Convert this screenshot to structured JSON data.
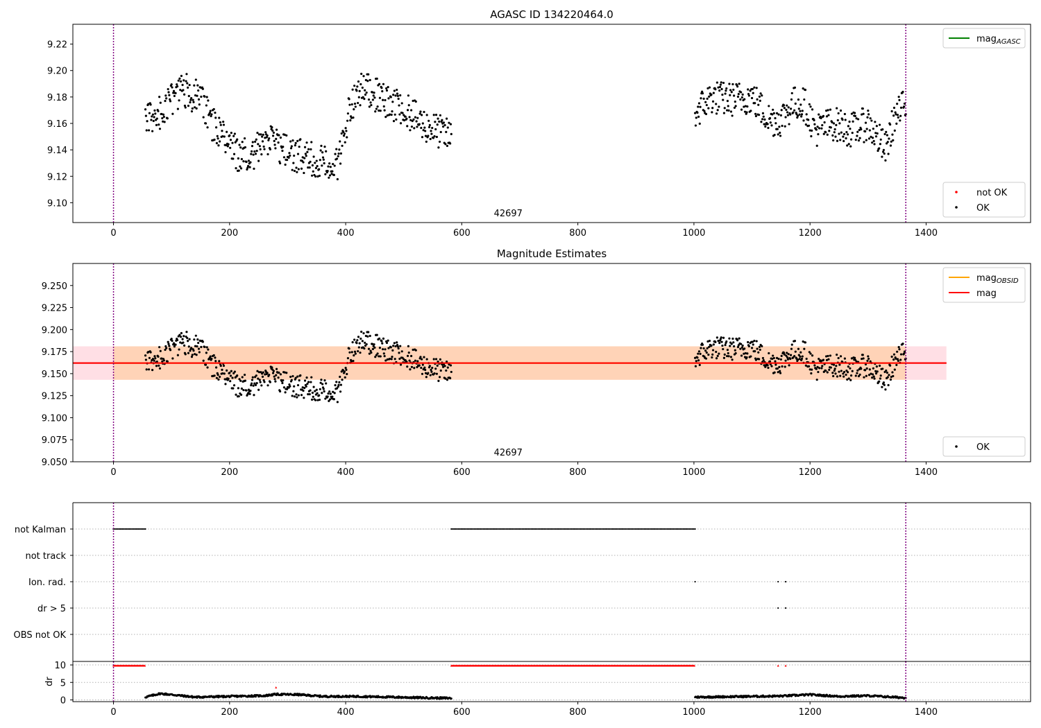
{
  "chart_data": [
    {
      "type": "scatter",
      "title": "AGASC ID 134220464.0",
      "xlim": [
        -70,
        1580
      ],
      "ylim": [
        9.085,
        9.235
      ],
      "xticks": [
        0,
        200,
        400,
        600,
        800,
        1000,
        1200,
        1400
      ],
      "yticks": [
        9.1,
        9.12,
        9.14,
        9.16,
        9.18,
        9.2,
        9.22
      ],
      "ytick_decimals": 2,
      "grid": false,
      "obsid_label": "42697",
      "vlines": [
        0,
        1365
      ],
      "legends": [
        {
          "position": "top-right",
          "entries": [
            {
              "label": "mag",
              "sub": "AGASC",
              "kind": "line",
              "color": "#008000"
            }
          ]
        },
        {
          "position": "bottom-right",
          "entries": [
            {
              "label": "not OK",
              "kind": "dot",
              "color": "#ff0000"
            },
            {
              "label": "OK",
              "kind": "dot",
              "color": "#000000"
            }
          ]
        }
      ],
      "series": [
        {
          "name": "OK",
          "color": "#000000",
          "x_segments": [
            [
              55,
              582,
              1.0
            ],
            [
              1002,
              1365,
              1.0
            ]
          ],
          "profile": [
            [
              55,
              9.162
            ],
            [
              80,
              9.168
            ],
            [
              100,
              9.178
            ],
            [
              120,
              9.186
            ],
            [
              150,
              9.178
            ],
            [
              170,
              9.16
            ],
            [
              195,
              9.148
            ],
            [
              215,
              9.136
            ],
            [
              240,
              9.138
            ],
            [
              270,
              9.146
            ],
            [
              300,
              9.138
            ],
            [
              330,
              9.134
            ],
            [
              370,
              9.13
            ],
            [
              385,
              9.128
            ],
            [
              400,
              9.16
            ],
            [
              420,
              9.184
            ],
            [
              440,
              9.186
            ],
            [
              470,
              9.175
            ],
            [
              500,
              9.172
            ],
            [
              530,
              9.16
            ],
            [
              560,
              9.154
            ],
            [
              580,
              9.15
            ],
            [
              1002,
              9.168
            ],
            [
              1030,
              9.18
            ],
            [
              1060,
              9.178
            ],
            [
              1100,
              9.18
            ],
            [
              1130,
              9.163
            ],
            [
              1150,
              9.163
            ],
            [
              1170,
              9.175
            ],
            [
              1190,
              9.175
            ],
            [
              1210,
              9.155
            ],
            [
              1240,
              9.16
            ],
            [
              1270,
              9.155
            ],
            [
              1300,
              9.16
            ],
            [
              1330,
              9.14
            ],
            [
              1345,
              9.163
            ],
            [
              1365,
              9.175
            ]
          ],
          "scatter": 0.013
        }
      ]
    },
    {
      "type": "scatter",
      "title": "Magnitude Estimates",
      "xlim": [
        -70,
        1580
      ],
      "ylim": [
        9.05,
        9.275
      ],
      "xticks": [
        0,
        200,
        400,
        600,
        800,
        1000,
        1200,
        1400
      ],
      "yticks": [
        9.05,
        9.075,
        9.1,
        9.125,
        9.15,
        9.175,
        9.2,
        9.225,
        9.25
      ],
      "ytick_decimals": 3,
      "grid": false,
      "obsid_label": "42697",
      "vlines": [
        0,
        1365
      ],
      "bands": [
        {
          "x": [
            -70,
            1435
          ],
          "y": [
            9.143,
            9.181
          ],
          "color": "#ffc0cb",
          "opacity": 0.5
        },
        {
          "x": [
            0,
            1365
          ],
          "y": [
            9.143,
            9.181
          ],
          "color": "#ffa500",
          "opacity": 0.2
        }
      ],
      "hlines": [
        {
          "y": 9.162,
          "x": [
            -70,
            1435
          ],
          "color": "#ff0000",
          "label": "mag"
        },
        {
          "y": 9.162,
          "x": [
            0,
            1365
          ],
          "color": "#ffa500",
          "label": "mag",
          "sub": "OBSID"
        }
      ],
      "legends": [
        {
          "position": "top-right",
          "entries": [
            {
              "label": "mag",
              "sub": "OBSID",
              "kind": "line",
              "color": "#ffa500"
            },
            {
              "label": "mag",
              "kind": "line",
              "color": "#ff0000"
            }
          ]
        },
        {
          "position": "bottom-right",
          "entries": [
            {
              "label": "OK",
              "kind": "dot",
              "color": "#000000"
            }
          ]
        }
      ],
      "series": [
        {
          "name": "OK",
          "color": "#000000",
          "same_as_panel": 0
        }
      ]
    },
    {
      "type": "scatter",
      "title": "",
      "xlim": [
        -70,
        1580
      ],
      "xticks": [
        0,
        200,
        400,
        600,
        800,
        1000,
        1200,
        1400
      ],
      "vlines": [
        0,
        1365
      ],
      "flag_rows": [
        "not Kalman",
        "not track",
        "Ion. rad.",
        "dr > 5",
        "OBS not OK"
      ],
      "flags": [
        {
          "row": "not Kalman",
          "x_segments": [
            [
              0,
              55,
              2.5
            ],
            [
              582,
              1002,
              2.5
            ]
          ],
          "color": "#000000"
        },
        {
          "row": "Ion. rad.",
          "x": [
            1002,
            1145,
            1158
          ],
          "color": "#000000"
        },
        {
          "row": "dr > 5",
          "x": [
            1145,
            1158
          ],
          "color": "#000000"
        }
      ]
    },
    {
      "type": "scatter",
      "title": "",
      "ylabel": "dr",
      "xlim": [
        -70,
        1580
      ],
      "ylim": [
        -0.5,
        11
      ],
      "xticks": [
        0,
        200,
        400,
        600,
        800,
        1000,
        1200,
        1400
      ],
      "yticks": [
        0,
        5,
        10
      ],
      "grid": true,
      "vlines": [
        0,
        1365
      ],
      "series": [
        {
          "name": "OK",
          "color": "#000000",
          "x_segments": [
            [
              55,
              582,
              1.0
            ],
            [
              1002,
              1365,
              1.0
            ]
          ],
          "profile": [
            [
              55,
              0.8
            ],
            [
              80,
              1.8
            ],
            [
              100,
              1.5
            ],
            [
              140,
              0.8
            ],
            [
              200,
              1.0
            ],
            [
              260,
              1.2
            ],
            [
              280,
              1.6
            ],
            [
              320,
              1.5
            ],
            [
              360,
              1.0
            ],
            [
              420,
              1.0
            ],
            [
              480,
              0.8
            ],
            [
              540,
              0.6
            ],
            [
              580,
              0.5
            ],
            [
              1002,
              0.8
            ],
            [
              1050,
              0.9
            ],
            [
              1100,
              1.0
            ],
            [
              1150,
              1.1
            ],
            [
              1200,
              1.5
            ],
            [
              1250,
              1.0
            ],
            [
              1300,
              1.2
            ],
            [
              1365,
              0.6
            ]
          ],
          "scatter": 0.25
        },
        {
          "name": "not OK",
          "color": "#ff0000",
          "x_segments": [
            [
              0,
              55,
              1.2
            ],
            [
              582,
              1002,
              1.2
            ]
          ],
          "y": 9.8
        },
        {
          "name": "not OK",
          "color": "#ff0000",
          "x": [
            280,
            1145,
            1158
          ],
          "y": [
            3.6,
            9.8,
            9.8
          ]
        }
      ]
    }
  ]
}
